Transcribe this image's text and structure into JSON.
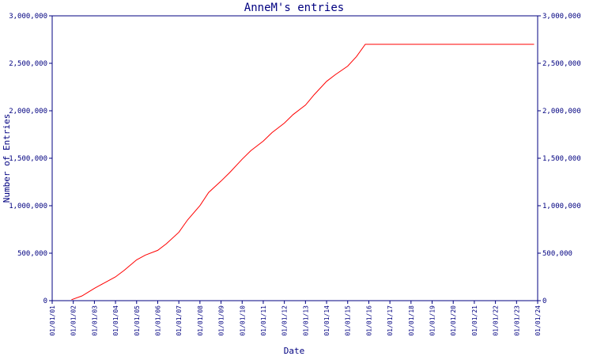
{
  "chart_data": {
    "type": "line",
    "title": "AnneM's entries",
    "xlabel": "Date",
    "ylabel": "Number of Entries",
    "ylim": [
      0,
      3000000
    ],
    "xlim": [
      "2001-01-01",
      "2024-01-01"
    ],
    "y_tick_values": [
      0,
      500000,
      1000000,
      1500000,
      2000000,
      2500000,
      3000000
    ],
    "y_tick_labels": [
      "0",
      "500,000",
      "1,000,000",
      "1,500,000",
      "2,000,000",
      "2,500,000",
      "3,000,000"
    ],
    "x_tick_labels": [
      "01/01/01",
      "01/01/02",
      "01/01/03",
      "01/01/04",
      "01/01/05",
      "01/01/06",
      "01/01/07",
      "01/01/08",
      "01/01/09",
      "01/01/10",
      "01/01/11",
      "01/01/12",
      "01/01/13",
      "01/01/14",
      "01/01/15",
      "01/01/16",
      "01/01/17",
      "01/01/18",
      "01/01/19",
      "01/01/20",
      "01/01/21",
      "01/01/22",
      "01/01/23",
      "01/01/24"
    ],
    "axis_color": "#000080",
    "line_color": "#ff0000",
    "grid": false,
    "legend": "none",
    "series": [
      {
        "x": [
          "2001-12-01",
          "2002-06-01",
          "2003-01-01",
          "2003-06-01",
          "2004-01-01",
          "2004-06-01",
          "2005-01-01",
          "2005-06-01",
          "2006-01-01",
          "2006-06-01",
          "2007-01-01",
          "2007-06-01",
          "2008-01-01",
          "2008-06-01",
          "2009-01-01",
          "2009-06-01",
          "2010-01-01",
          "2010-06-01",
          "2011-01-01",
          "2011-06-01",
          "2012-01-01",
          "2012-06-01",
          "2013-01-01",
          "2013-06-01",
          "2014-01-01",
          "2014-06-01",
          "2015-01-01",
          "2015-06-01",
          "2015-11-01",
          "2023-11-01"
        ],
        "values": [
          10000,
          50000,
          130000,
          180000,
          250000,
          320000,
          430000,
          480000,
          530000,
          600000,
          720000,
          850000,
          1000000,
          1140000,
          1260000,
          1350000,
          1490000,
          1580000,
          1680000,
          1770000,
          1870000,
          1960000,
          2060000,
          2170000,
          2310000,
          2380000,
          2470000,
          2570000,
          2700000,
          2700000
        ]
      }
    ]
  }
}
